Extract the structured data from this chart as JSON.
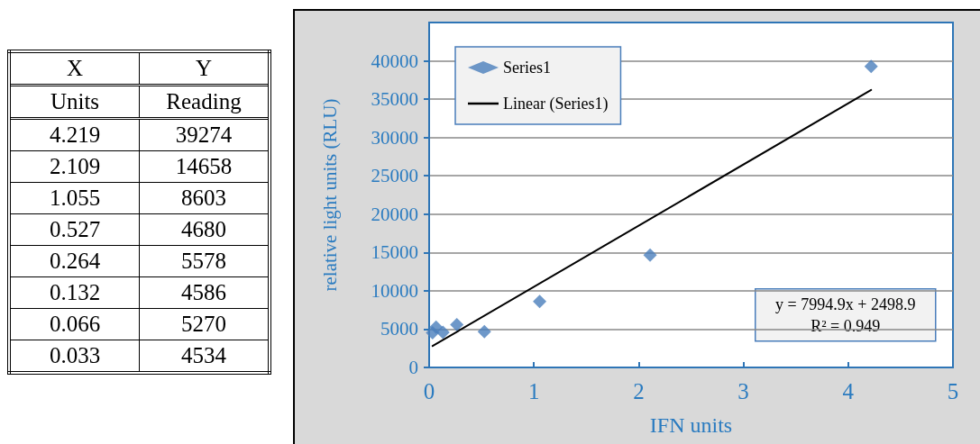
{
  "chart_data": [
    {
      "type": "other",
      "annotations": [
        "X",
        "Y",
        "Units",
        "Reading",
        "4.219",
        "39274",
        "2.109",
        "14658",
        "1.055",
        "8603",
        "0.527",
        "4680",
        "0.264",
        "5578",
        "0.132",
        "4586",
        "0.066",
        "5270",
        "0.033",
        "4534"
      ]
    },
    {
      "type": "scatter",
      "xlabel": "IFN units",
      "ylabel": "relative light units (RLU)",
      "annotations": [
        "y = 7994.9x + 2498.9",
        "R² = 0.949"
      ],
      "series": [
        {
          "name": "Series1",
          "type": "scatter",
          "color": "#4a7ebb",
          "marker": "diamond",
          "x": [
            4.219,
            2.109,
            1.055,
            0.527,
            0.264,
            0.132,
            0.066,
            0.033
          ],
          "values": [
            39274,
            14658,
            8603,
            4680,
            5578,
            4586,
            5270,
            4534
          ]
        },
        {
          "name": "Linear (Series1)",
          "type": "line",
          "color": "#000000",
          "marker": "none",
          "line_style": "solid",
          "x": [
            0.033,
            4.219
          ],
          "values": [
            2800,
            36200
          ]
        }
      ],
      "xlim": [
        0,
        5
      ],
      "xticks": [
        0,
        1,
        2,
        3,
        4,
        5
      ],
      "ylim": [
        0,
        45000
      ],
      "yticks": [
        0,
        5000,
        10000,
        15000,
        20000,
        25000,
        30000,
        35000,
        40000
      ],
      "grid": "y",
      "legend": "top left"
    }
  ]
}
